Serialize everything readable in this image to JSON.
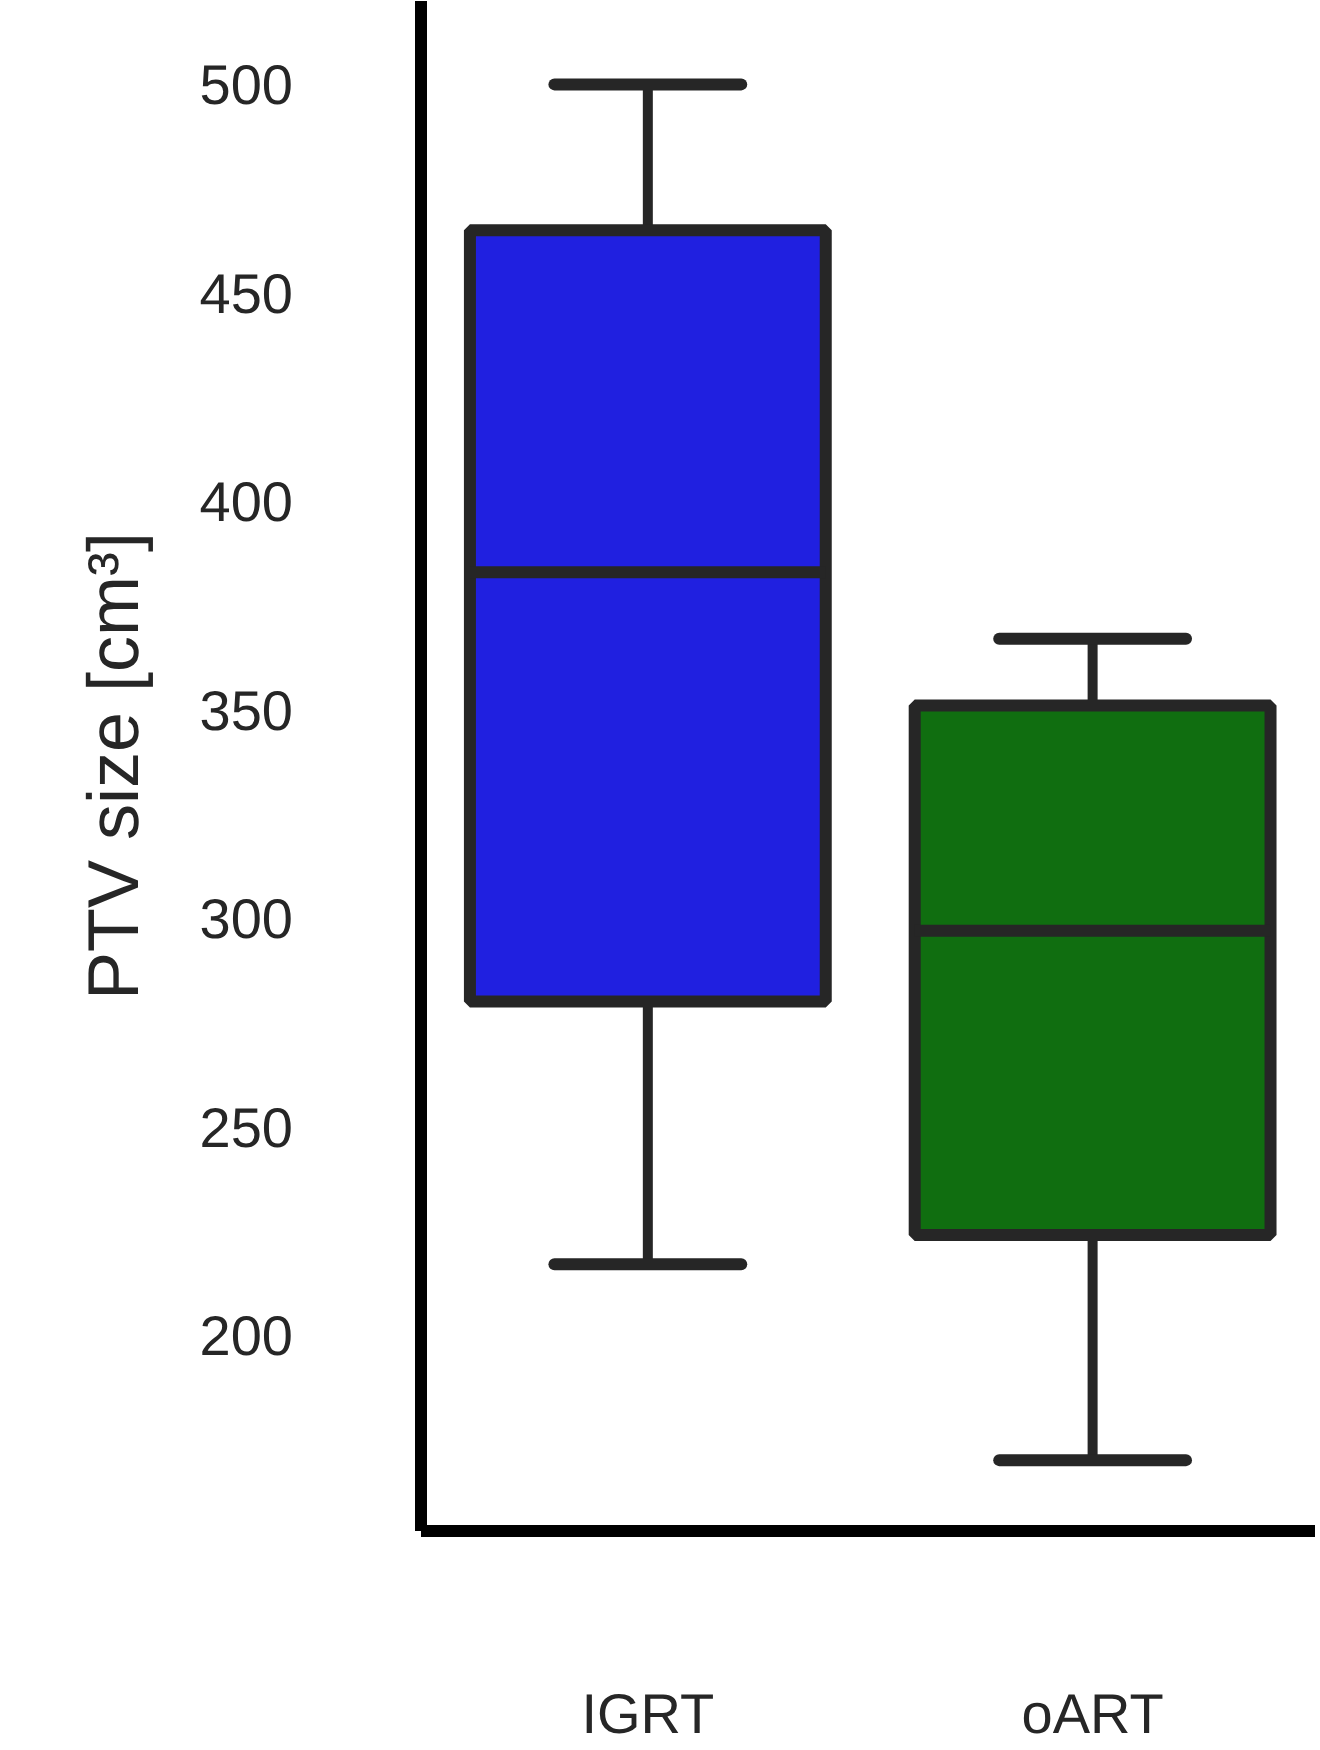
{
  "chart_data": {
    "type": "box",
    "ylabel": "PTV size [cm³]",
    "categories": [
      "IGRT",
      "oART"
    ],
    "colors": [
      "#2020e0",
      "#106e10"
    ],
    "boxes": [
      {
        "low": 217,
        "q1": 280,
        "median": 383,
        "q3": 465,
        "high": 500
      },
      {
        "low": 170,
        "q1": 224,
        "median": 297,
        "q3": 351,
        "high": 367
      }
    ],
    "ylim": [
      153,
      520
    ],
    "yticks": [
      200,
      250,
      300,
      350,
      400,
      450,
      500
    ],
    "grid": false
  }
}
